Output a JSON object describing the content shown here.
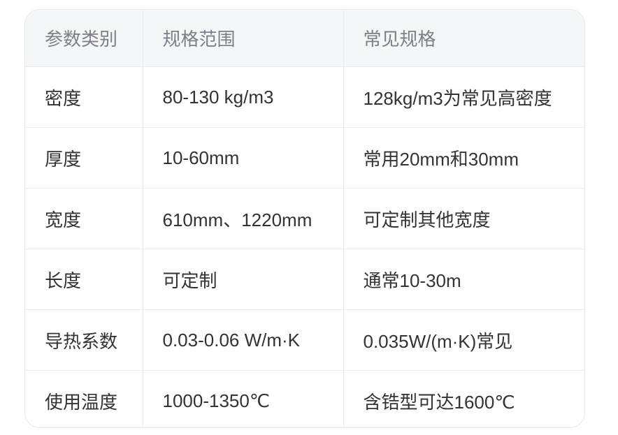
{
  "table": {
    "headers": [
      "参数类别",
      "规格范围",
      "常见规格"
    ],
    "rows": [
      [
        "密度",
        "80-130 kg/m3",
        "128kg/m3为常见高密度"
      ],
      [
        "厚度",
        "10-60mm",
        "常用20mm和30mm"
      ],
      [
        "宽度",
        "610mm、1220mm",
        "可定制其他宽度"
      ],
      [
        "长度",
        "可定制",
        "通常10-30m"
      ],
      [
        "导热系数",
        "0.03-0.06 W/m·K",
        "0.035W/(m·K)常见"
      ],
      [
        "使用温度",
        "1000-1350℃",
        "含锆型可达1600℃"
      ]
    ]
  }
}
